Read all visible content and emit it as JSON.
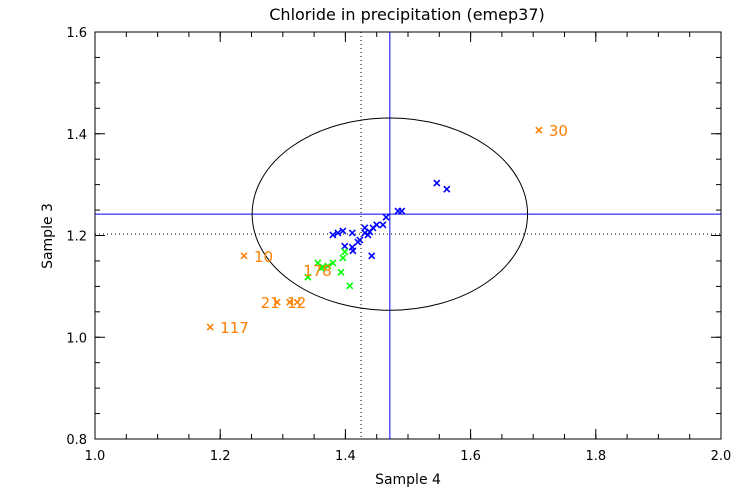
{
  "chart_data": {
    "type": "scatter",
    "title": "Chloride in precipitation (emep37)",
    "xlabel": "Sample 4",
    "ylabel": "Sample 3",
    "xlim": [
      1.0,
      2.0
    ],
    "ylim": [
      0.8,
      1.6
    ],
    "xticks": [
      "1.0",
      "1.2",
      "1.4",
      "1.6",
      "1.8",
      "2.0"
    ],
    "yticks": [
      "0.8",
      "1.0",
      "1.2",
      "1.4",
      "1.6"
    ],
    "grid": false,
    "colors": {
      "blue": "#0000ff",
      "green": "#00ff00",
      "orange": "#ff7f00",
      "axis": "#000000"
    },
    "reference_lines": {
      "assigned_x": 1.471,
      "assigned_y": 1.242,
      "median_x": 1.425,
      "median_y": 1.203
    },
    "ellipse": {
      "center": [
        1.471,
        1.242
      ],
      "semi_x": 0.22,
      "semi_y": 0.189
    },
    "series": [
      {
        "color": "blue",
        "points": [
          [
            1.546,
            1.303
          ],
          [
            1.562,
            1.291
          ],
          [
            1.484,
            1.248
          ],
          [
            1.49,
            1.248
          ],
          [
            1.465,
            1.236
          ],
          [
            1.46,
            1.221
          ],
          [
            1.45,
            1.221
          ],
          [
            1.444,
            1.215
          ],
          [
            1.439,
            1.207
          ],
          [
            1.431,
            1.215
          ],
          [
            1.431,
            1.205
          ],
          [
            1.436,
            1.201
          ],
          [
            1.423,
            1.191
          ],
          [
            1.42,
            1.187
          ],
          [
            1.411,
            1.205
          ],
          [
            1.396,
            1.209
          ],
          [
            1.388,
            1.205
          ],
          [
            1.38,
            1.201
          ],
          [
            1.399,
            1.179
          ],
          [
            1.412,
            1.17
          ],
          [
            1.411,
            1.177
          ],
          [
            1.442,
            1.16
          ]
        ]
      },
      {
        "color": "green",
        "points": [
          [
            1.399,
            1.168
          ],
          [
            1.396,
            1.156
          ],
          [
            1.38,
            1.146
          ],
          [
            1.372,
            1.14
          ],
          [
            1.364,
            1.138
          ],
          [
            1.356,
            1.146
          ],
          [
            1.361,
            1.136
          ],
          [
            1.34,
            1.118
          ],
          [
            1.393,
            1.128
          ],
          [
            1.407,
            1.101
          ]
        ]
      },
      {
        "color": "orange",
        "points": [
          {
            "x": 1.709,
            "y": 1.407,
            "label": "30"
          },
          {
            "x": 1.238,
            "y": 1.16,
            "label": "10"
          },
          {
            "x": 1.184,
            "y": 1.02,
            "label": "117"
          },
          {
            "x": 1.291,
            "y": 1.069,
            "label": "12"
          },
          {
            "x": 1.311,
            "y": 1.069,
            "label": "21"
          },
          {
            "x": 1.323,
            "y": 1.069,
            "label": "178"
          }
        ]
      }
    ]
  }
}
